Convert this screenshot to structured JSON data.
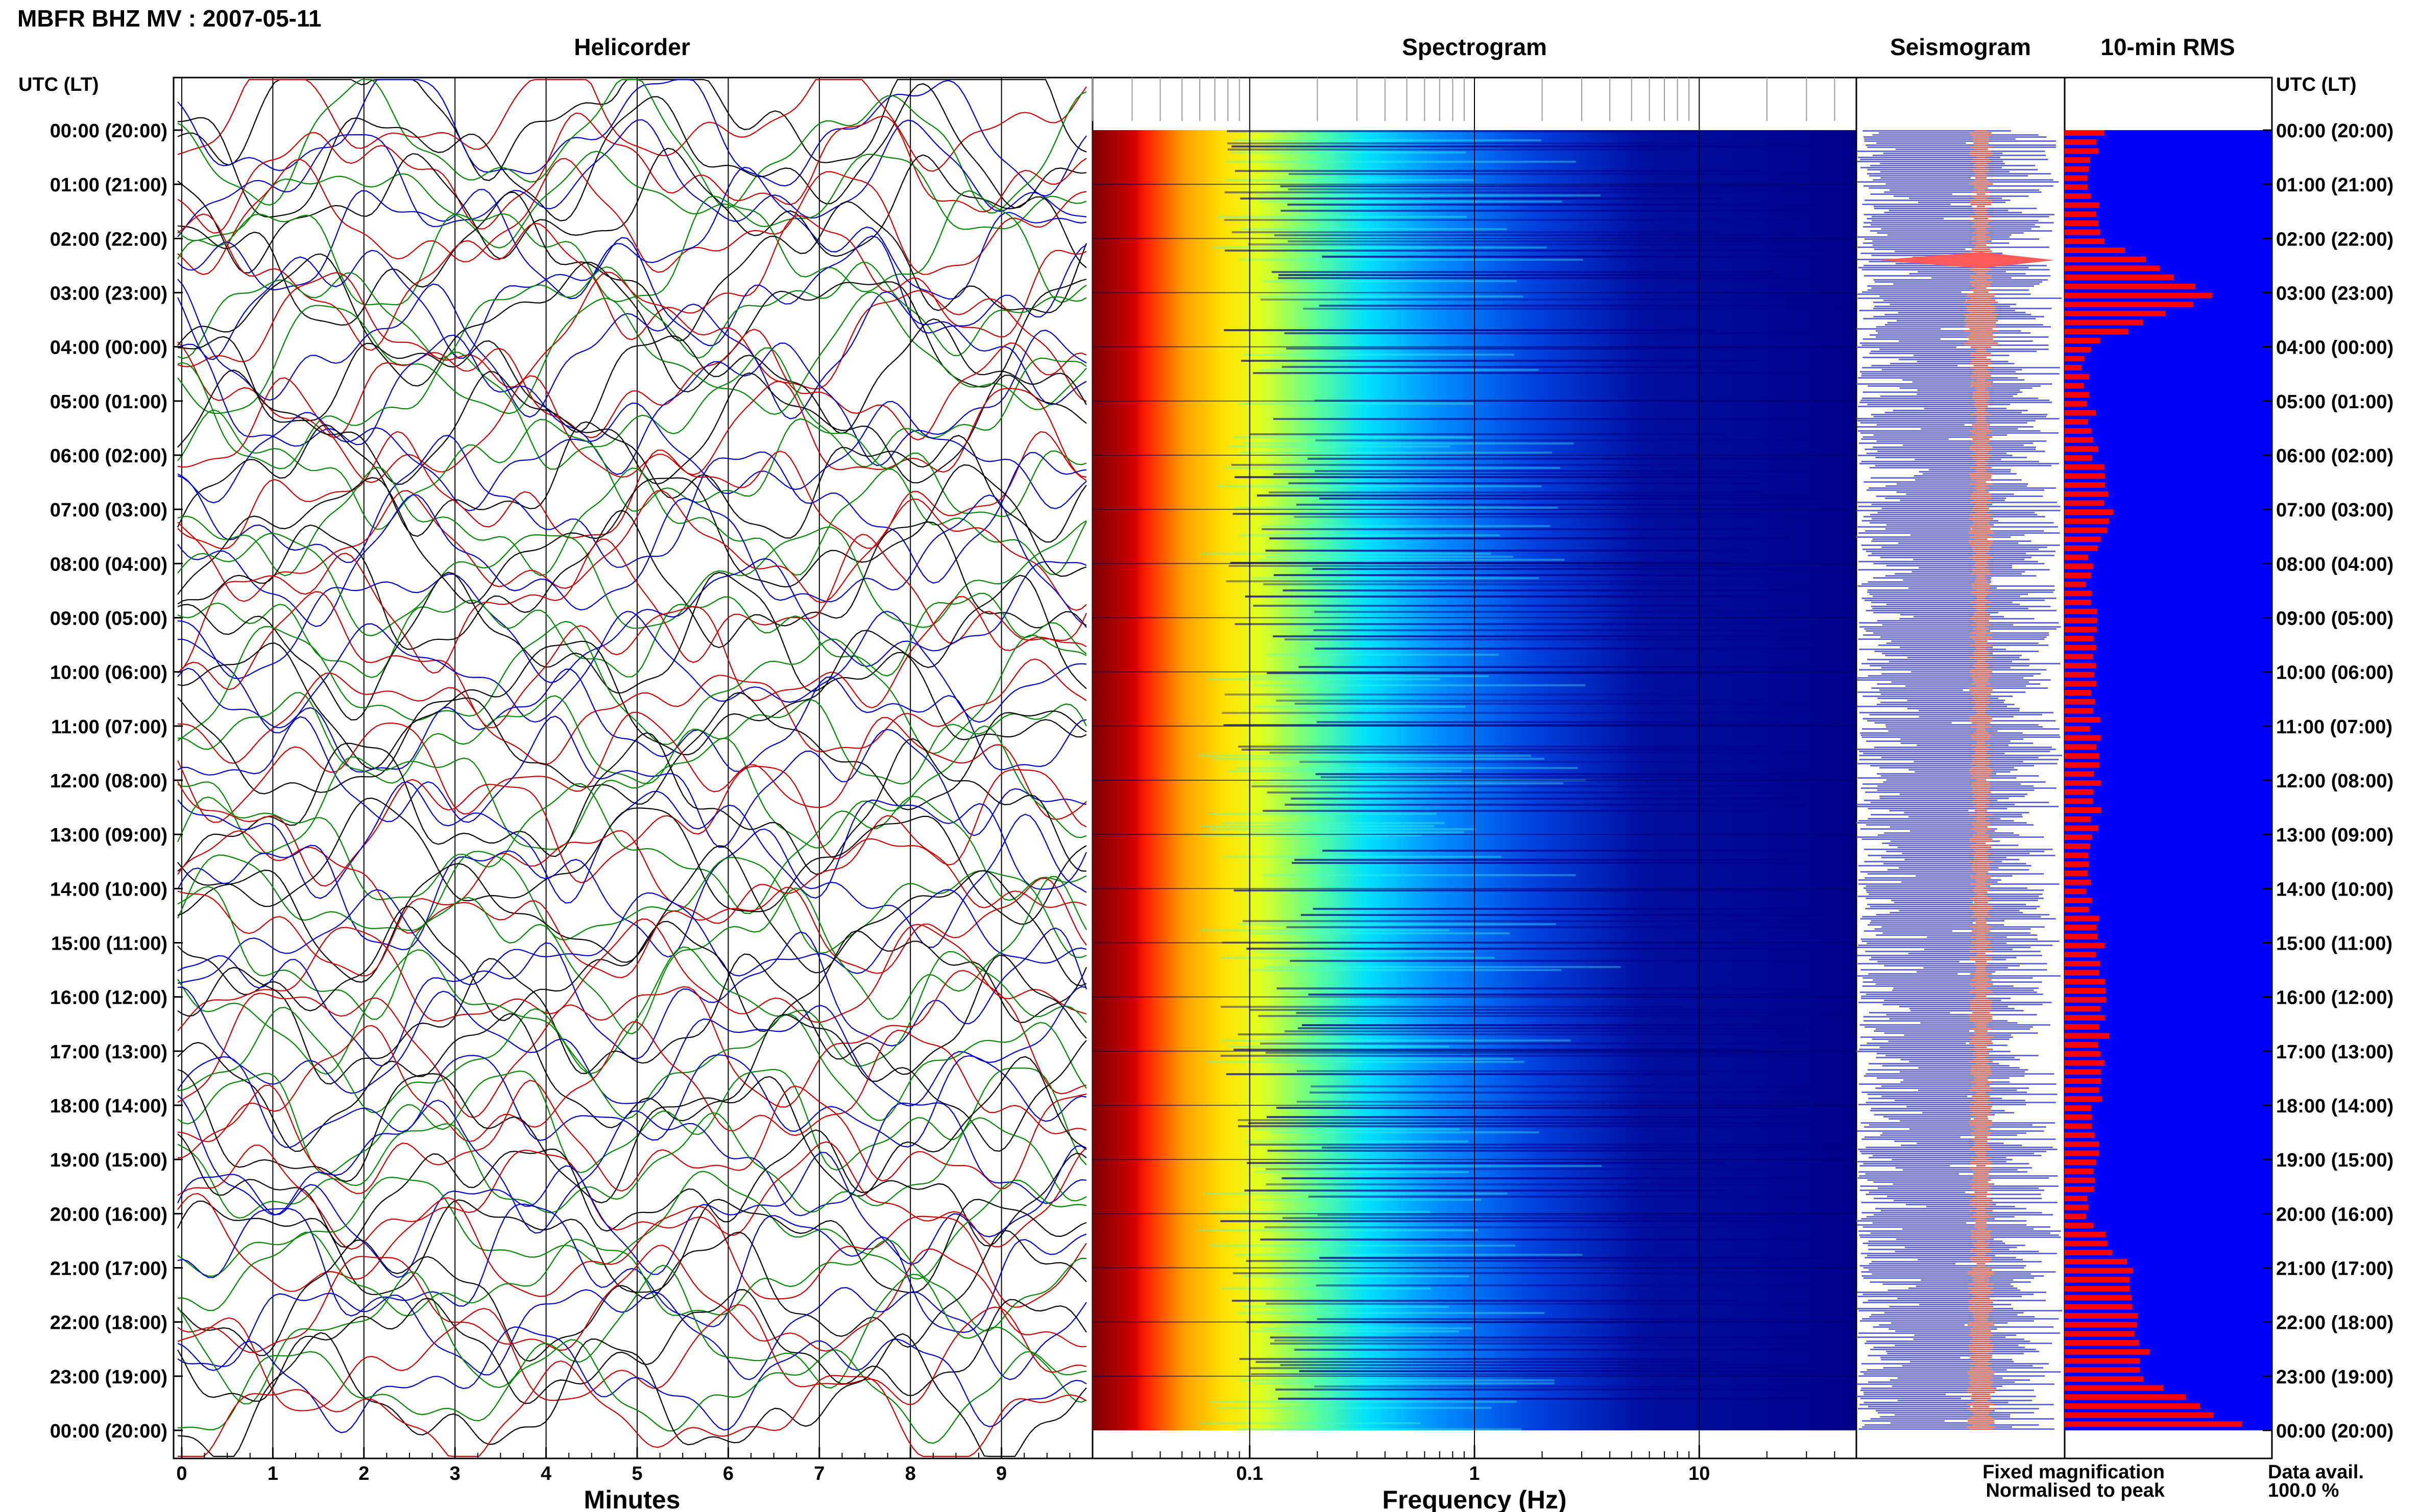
{
  "header": {
    "station_title": "MBFR BHZ MV : 2007-05-11",
    "time_axis_label_left": "UTC (LT)",
    "time_axis_label_right": "UTC (LT)"
  },
  "panels": {
    "helicorder": "Helicorder",
    "spectrogram": "Spectrogram",
    "seismogram": "Seismogram",
    "rms": "10-min RMS"
  },
  "legend": {
    "fixed": "Fixed magnification",
    "normalised": "Normalised to peak",
    "fixed_color": "#0000ff",
    "normalised_color": "#ff3333"
  },
  "data_availability": {
    "label": "Data avail.",
    "value": "100.0 %"
  },
  "chart_data": [
    {
      "type": "line",
      "title": "Helicorder",
      "xlabel": "Minutes",
      "ylabel": "UTC (LT)",
      "x_ticks": [
        "0",
        "1",
        "2",
        "3",
        "4",
        "5",
        "6",
        "7",
        "8",
        "9"
      ],
      "xlim": [
        0,
        10
      ],
      "y_ticks": [
        "00:00 (20:00)",
        "01:00 (21:00)",
        "02:00 (22:00)",
        "03:00 (23:00)",
        "04:00 (00:00)",
        "05:00 (01:00)",
        "06:00 (02:00)",
        "07:00 (03:00)",
        "08:00 (04:00)",
        "09:00 (05:00)",
        "10:00 (06:00)",
        "11:00 (07:00)",
        "12:00 (08:00)",
        "13:00 (09:00)",
        "14:00 (10:00)",
        "15:00 (11:00)",
        "16:00 (12:00)",
        "17:00 (13:00)",
        "18:00 (14:00)",
        "19:00 (15:00)",
        "20:00 (16:00)",
        "21:00 (17:00)",
        "22:00 (18:00)",
        "23:00 (19:00)",
        "00:00 (20:00)"
      ],
      "trace_colors": [
        "#000000",
        "#cc0000",
        "#0000cc",
        "#008800"
      ],
      "grid": "vertical at each minute"
    },
    {
      "type": "heatmap",
      "title": "Spectrogram",
      "xlabel": "Frequency (Hz)",
      "x_scale": "log",
      "x_ticks": [
        "0.1",
        "1",
        "10"
      ],
      "xlim": [
        0.02,
        50
      ],
      "colormap": "jet"
    },
    {
      "type": "area",
      "title": "Seismogram",
      "series": [
        {
          "name": "Fixed magnification",
          "color": "#6666ff"
        },
        {
          "name": "Normalised to peak",
          "color": "#ff5a5a"
        }
      ]
    },
    {
      "type": "bar",
      "title": "10-min RMS",
      "orientation": "horizontal",
      "bar_color": "#ff0000",
      "background_color": "#0000ff",
      "hourly_relative_values": [
        0.18,
        0.12,
        0.2,
        0.7,
        0.1,
        0.12,
        0.16,
        0.22,
        0.12,
        0.14,
        0.16,
        0.15,
        0.16,
        0.14,
        0.13,
        0.17,
        0.2,
        0.18,
        0.15,
        0.14,
        0.13,
        0.32,
        0.36,
        0.4,
        0.92
      ]
    }
  ]
}
